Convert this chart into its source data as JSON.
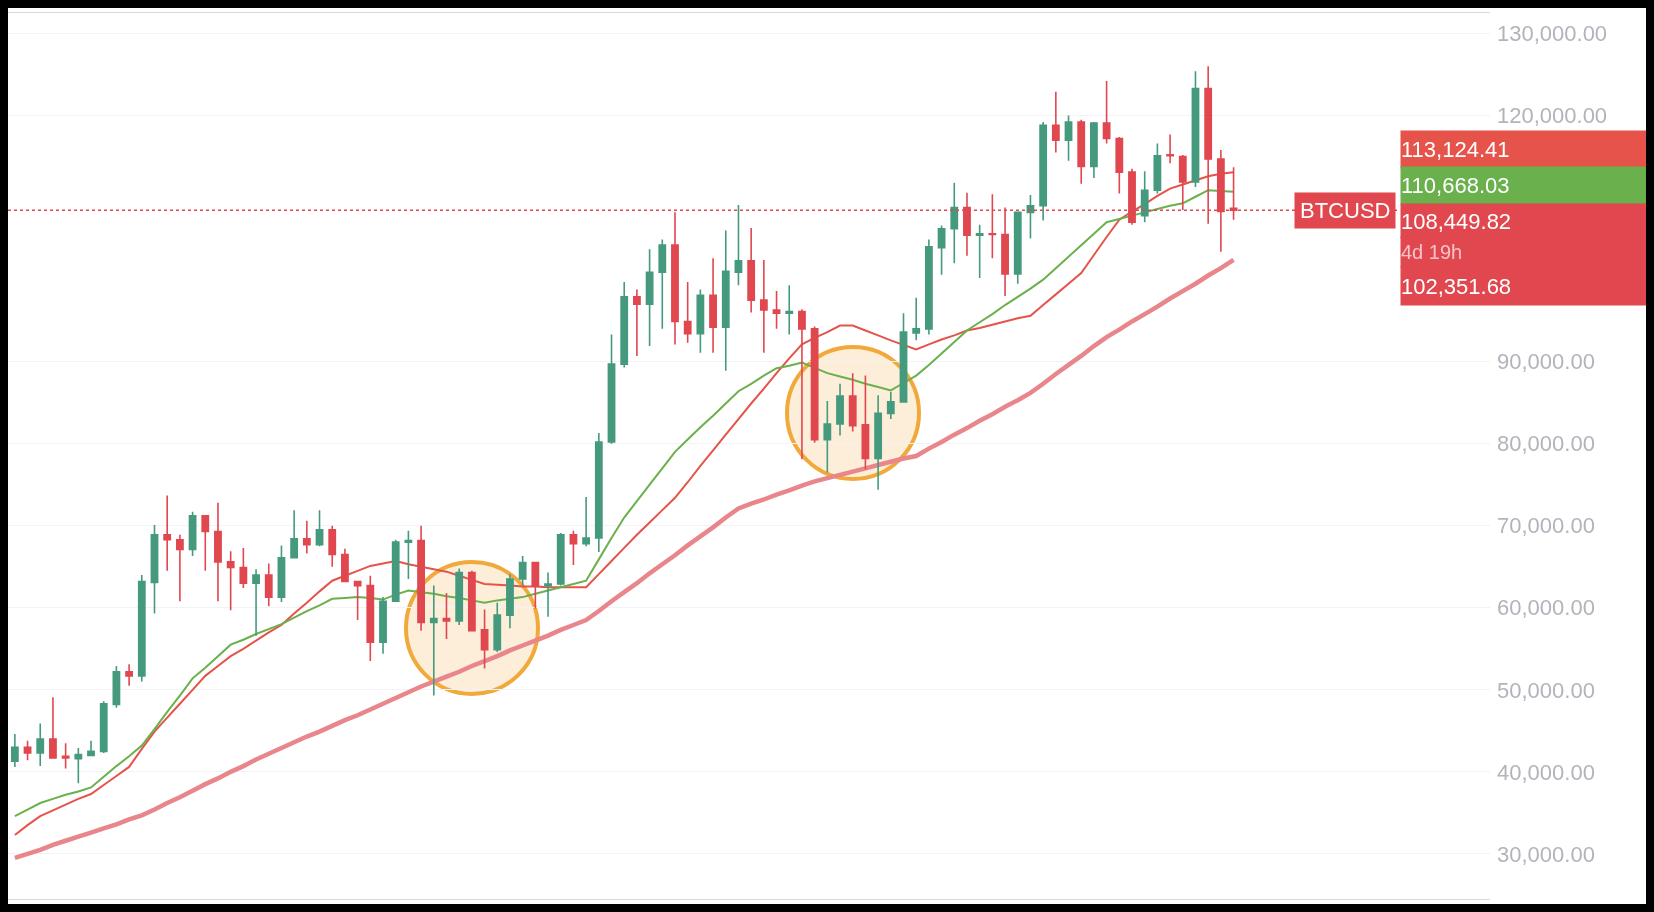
{
  "chart_data": {
    "type": "candlestick",
    "categories": [
      null,
      null,
      null,
      null,
      null,
      null,
      null,
      null,
      null,
      null,
      null,
      null,
      null,
      null,
      null,
      null,
      null,
      null,
      null,
      null,
      null,
      null,
      null,
      null,
      null,
      null,
      null,
      null,
      null,
      null,
      null,
      null,
      null,
      null,
      null,
      null,
      null,
      null,
      null,
      null,
      null,
      null,
      null,
      null,
      null,
      null,
      null,
      null,
      null,
      null,
      null,
      null,
      null,
      null,
      null,
      null,
      null,
      null,
      null,
      null,
      null,
      null,
      null,
      null,
      null,
      null,
      null,
      null,
      null,
      null,
      null,
      null,
      null,
      null,
      null,
      null,
      null,
      null,
      null,
      null,
      null,
      null,
      null,
      null,
      null,
      null,
      null,
      null,
      null,
      null,
      null,
      null,
      null,
      null,
      null,
      null,
      null
    ],
    "ohlc": [
      [
        41300,
        44600,
        40600,
        43000
      ],
      [
        43000,
        43800,
        41400,
        42300
      ],
      [
        42300,
        45900,
        40700,
        44000
      ],
      [
        44000,
        49100,
        41600,
        41700
      ],
      [
        41900,
        43500,
        40400,
        41700
      ],
      [
        41600,
        42900,
        38600,
        42100
      ],
      [
        42000,
        43800,
        41900,
        42500
      ],
      [
        42500,
        48600,
        42300,
        48300
      ],
      [
        48200,
        52900,
        47800,
        52200
      ],
      [
        52200,
        53100,
        50500,
        51700
      ],
      [
        51700,
        64000,
        51000,
        63200
      ],
      [
        63100,
        70100,
        59300,
        68900
      ],
      [
        68900,
        73700,
        64500,
        68300
      ],
      [
        68300,
        68900,
        60800,
        67100
      ],
      [
        67100,
        71700,
        66300,
        71200
      ],
      [
        71200,
        71300,
        64500,
        69300
      ],
      [
        69300,
        72800,
        60800,
        65600
      ],
      [
        65600,
        66900,
        59700,
        64900
      ],
      [
        64900,
        67300,
        62400,
        63000
      ],
      [
        63000,
        64700,
        56600,
        64000
      ],
      [
        64000,
        65400,
        60200,
        61300
      ],
      [
        61300,
        67600,
        60700,
        66100
      ],
      [
        66100,
        71900,
        66100,
        68400
      ],
      [
        68400,
        70600,
        66600,
        67700
      ],
      [
        67700,
        71900,
        67500,
        69500
      ],
      [
        69500,
        70000,
        65000,
        66500
      ],
      [
        66500,
        67200,
        63100,
        63200
      ],
      [
        63200,
        63300,
        58500,
        62700
      ],
      [
        62700,
        63900,
        53500,
        55800
      ],
      [
        55800,
        61300,
        54400,
        60800
      ],
      [
        60800,
        68300,
        60700,
        68000
      ],
      [
        68000,
        69400,
        63500,
        68200
      ],
      [
        68200,
        70000,
        57200,
        58200
      ],
      [
        58200,
        62700,
        49300,
        58700
      ],
      [
        58700,
        61800,
        56200,
        58400
      ],
      [
        58400,
        64800,
        57900,
        64300
      ],
      [
        64300,
        64500,
        57100,
        57200
      ],
      [
        57300,
        59800,
        52600,
        54900
      ],
      [
        54900,
        60600,
        54600,
        59100
      ],
      [
        59100,
        64100,
        57500,
        63500
      ],
      [
        63500,
        66300,
        62700,
        65500
      ],
      [
        65500,
        65600,
        59900,
        62700
      ],
      [
        62700,
        64300,
        58900,
        62900
      ],
      [
        62900,
        69100,
        62700,
        68900
      ],
      [
        68900,
        69400,
        65200,
        67800
      ],
      [
        67800,
        73500,
        67500,
        68500
      ],
      [
        68500,
        81300,
        66800,
        80200
      ],
      [
        80200,
        93300,
        80000,
        89700
      ],
      [
        89700,
        99700,
        89300,
        97900
      ],
      [
        97900,
        98800,
        90700,
        97000
      ],
      [
        97000,
        103700,
        91900,
        100900
      ],
      [
        100900,
        104900,
        94000,
        104200
      ],
      [
        104200,
        108200,
        92100,
        94900
      ],
      [
        94900,
        99700,
        92300,
        93400
      ],
      [
        93400,
        98800,
        91100,
        98100
      ],
      [
        98100,
        102600,
        91100,
        94200
      ],
      [
        94200,
        106000,
        88900,
        101000
      ],
      [
        100900,
        109100,
        99300,
        102300
      ],
      [
        102300,
        106300,
        96000,
        97500
      ],
      [
        97500,
        102400,
        91100,
        96300
      ],
      [
        96300,
        98600,
        94000,
        95900
      ],
      [
        95900,
        99300,
        93300,
        96100
      ],
      [
        96100,
        96400,
        78100,
        94000
      ],
      [
        94000,
        94300,
        80100,
        80500
      ],
      [
        80500,
        85200,
        76500,
        82400
      ],
      [
        82400,
        87300,
        81000,
        85800
      ],
      [
        85800,
        88600,
        81500,
        82200
      ],
      [
        82300,
        88300,
        76900,
        78200
      ],
      [
        78200,
        85900,
        74400,
        83700
      ],
      [
        83700,
        86300,
        83000,
        85100
      ],
      [
        85100,
        95900,
        85000,
        93600
      ],
      [
        93500,
        97800,
        92600,
        94000
      ],
      [
        94000,
        104900,
        93300,
        104000
      ],
      [
        103900,
        106600,
        100600,
        106200
      ],
      [
        106200,
        111800,
        102000,
        108800
      ],
      [
        108800,
        110600,
        102900,
        105400
      ],
      [
        105400,
        106700,
        100200,
        105600
      ],
      [
        105600,
        110400,
        102600,
        105500
      ],
      [
        105500,
        108800,
        98000,
        100700
      ],
      [
        100700,
        108300,
        99500,
        108200
      ],
      [
        108200,
        110300,
        105000,
        109000
      ],
      [
        109000,
        119200,
        107200,
        118800
      ],
      [
        118800,
        122900,
        115500,
        117000
      ],
      [
        117000,
        120000,
        114500,
        119200
      ],
      [
        119200,
        119500,
        111700,
        113800
      ],
      [
        113800,
        119200,
        112400,
        119100
      ],
      [
        119100,
        124200,
        116600,
        117200
      ],
      [
        117200,
        117400,
        110500,
        113100
      ],
      [
        113100,
        113500,
        106700,
        107000
      ],
      [
        107800,
        113200,
        107000,
        110900
      ],
      [
        110900,
        116600,
        110500,
        115100
      ],
      [
        115200,
        117700,
        114200,
        115100
      ],
      [
        115000,
        115200,
        108500,
        111900
      ],
      [
        111900,
        125400,
        111300,
        123300
      ],
      [
        123300,
        126000,
        106800,
        114700
      ],
      [
        114700,
        115800,
        103400,
        108300
      ],
      [
        108700,
        113700,
        107300,
        108450
      ]
    ],
    "series": [
      {
        "type": "line",
        "color": "#e5534b",
        "values": [
          32300,
          33500,
          34600,
          35300,
          36000,
          36700,
          37300,
          38400,
          39500,
          40600,
          42800,
          44900,
          46600,
          48300,
          50000,
          51700,
          52900,
          54100,
          55000,
          56000,
          57000,
          57900,
          59300,
          60600,
          62000,
          63300,
          63900,
          64500,
          65100,
          65400,
          65700,
          65300,
          65000,
          64700,
          64400,
          63900,
          63400,
          62900,
          62800,
          62700,
          62600,
          62600,
          62500,
          62500,
          62500,
          62500,
          64100,
          65700,
          67300,
          68900,
          70400,
          71900,
          73400,
          75300,
          77300,
          79200,
          81100,
          83000,
          84900,
          86700,
          88600,
          90400,
          92100,
          92900,
          93600,
          94400,
          94400,
          93800,
          93200,
          92600,
          null,
          91500,
          92100,
          92700,
          93200,
          93800,
          94100,
          94500,
          94900,
          95300,
          95600,
          96900,
          98200,
          99500,
          100800,
          103000,
          105200,
          107300,
          108300,
          109200,
          110200,
          111100,
          111600,
          null,
          112600,
          112900,
          113100
        ]
      },
      {
        "type": "line",
        "color": "#6ab04c",
        "values": [
          34600,
          35400,
          36200,
          36700,
          37200,
          37600,
          38100,
          39400,
          40700,
          41900,
          43200,
          45200,
          47300,
          49300,
          51400,
          52700,
          54100,
          55500,
          56100,
          56800,
          57400,
          58000,
          58800,
          59600,
          60300,
          61100,
          61200,
          61300,
          61200,
          61000,
          61600,
          62100,
          61900,
          61700,
          61400,
          61200,
          60900,
          60600,
          60900,
          61100,
          61300,
          61700,
          62100,
          62500,
          62900,
          63300,
          65900,
          68500,
          71000,
          73000,
          75000,
          77000,
          79000,
          80500,
          82000,
          83400,
          84900,
          86400,
          87300,
          88300,
          89200,
          89500,
          89900,
          null,
          88600,
          88200,
          87800,
          87300,
          86900,
          86500,
          87400,
          88300,
          89600,
          91000,
          92400,
          93800,
          94800,
          95800,
          96900,
          97900,
          98900,
          100000,
          101400,
          102800,
          104200,
          105600,
          107000,
          107400,
          107800,
          108200,
          108600,
          109000,
          109300,
          110100,
          110900,
          110800,
          110700
        ]
      },
      {
        "type": "line",
        "color": "#e8868b",
        "values": [
          29500,
          30000,
          30500,
          31100,
          31600,
          32100,
          32600,
          33100,
          33600,
          34200,
          34700,
          35400,
          36200,
          36900,
          37700,
          38500,
          39200,
          40000,
          40700,
          41500,
          42200,
          42900,
          43600,
          44300,
          44900,
          45600,
          46300,
          46900,
          47600,
          48300,
          49000,
          49700,
          50400,
          51000,
          51600,
          52200,
          52900,
          53500,
          54100,
          54800,
          55400,
          56000,
          56600,
          57300,
          57900,
          58500,
          59600,
          60800,
          61900,
          63000,
          64200,
          65300,
          66400,
          67600,
          68700,
          69800,
          71000,
          72100,
          72700,
          73200,
          73800,
          74300,
          74900,
          75400,
          75800,
          76200,
          76600,
          77000,
          77400,
          77800,
          78200,
          78500,
          79400,
          80200,
          81100,
          81900,
          82800,
          83600,
          84500,
          85300,
          86200,
          87300,
          88500,
          89600,
          90700,
          91900,
          93000,
          93900,
          94900,
          95800,
          96700,
          97700,
          98600,
          99500,
          100500,
          101400,
          102400
        ]
      }
    ],
    "ylim": [
      24500,
      132500
    ],
    "yticks": [
      {
        "value": 30000,
        "label": "30,000.00"
      },
      {
        "value": 40000,
        "label": "40,000.00"
      },
      {
        "value": 50000,
        "label": "50,000.00"
      },
      {
        "value": 60000,
        "label": "60,000.00"
      },
      {
        "value": 70000,
        "label": "70,000.00"
      },
      {
        "value": 80000,
        "label": "80,000.00"
      },
      {
        "value": 90000,
        "label": "90,000.00"
      },
      {
        "value": 120000,
        "label": "120,000.00"
      },
      {
        "value": 130000,
        "label": "130,000.00"
      }
    ],
    "grid": "y",
    "tick_labels": "y",
    "ref_lines": [
      {
        "axis": "y",
        "value": 108449.82,
        "label": "BTCUSD",
        "color": "#e0474f",
        "line_style": "dotted"
      }
    ],
    "annotations": [
      "113,124.41",
      "110,668.03",
      "108,449.82",
      "4d 19h",
      "102,351.68"
    ]
  }
}
